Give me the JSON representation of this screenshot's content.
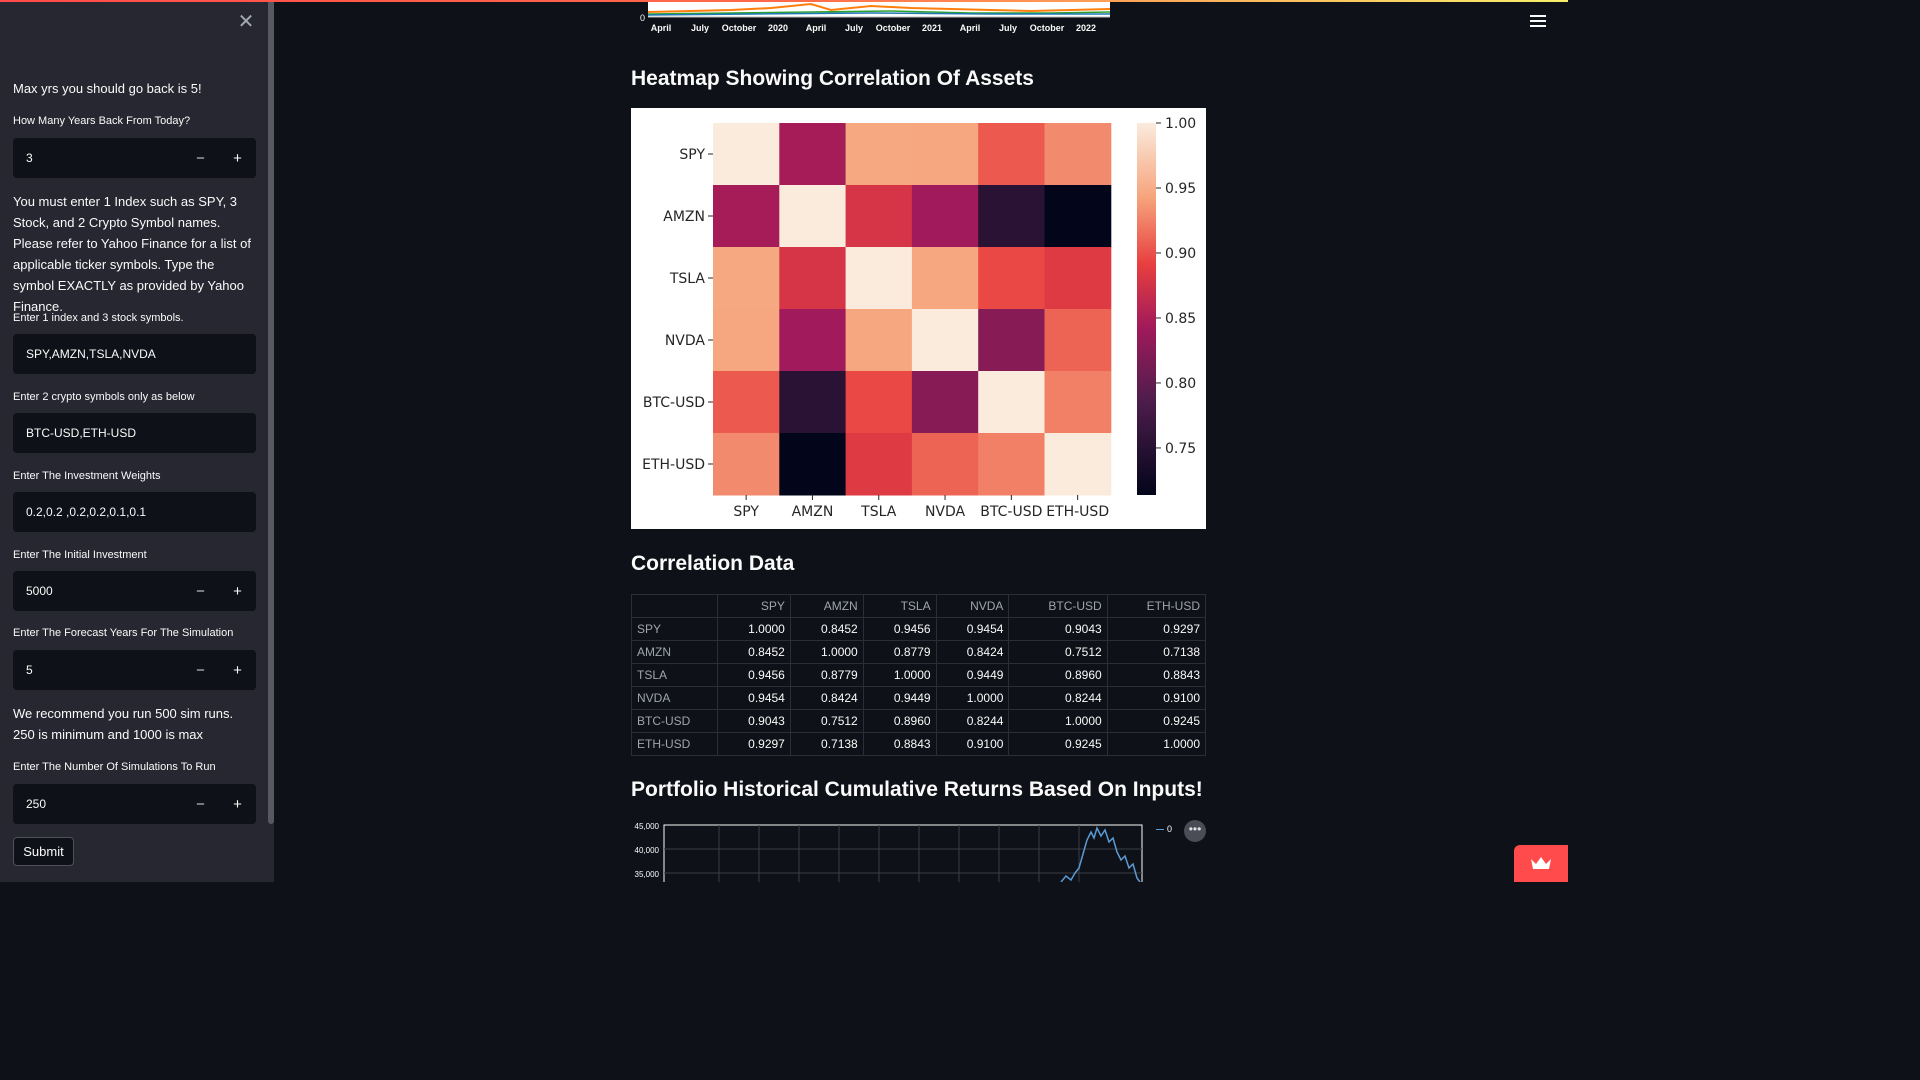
{
  "sidebar": {
    "intro_text": "Max yrs you should go back is 5!",
    "years_label": "How Many Years Back From Today?",
    "years_value": "3",
    "instructions": "You must enter 1 Index such as SPY, 3 Stock, and 2 Crypto Symbol names. Please refer to Yahoo Finance for a list of applicable ticker symbols. Type the symbol EXACTLY as provided by Yahoo Finance.",
    "stocks_label": "Enter 1 index and 3 stock symbols.",
    "stocks_value": "SPY,AMZN,TSLA,NVDA",
    "crypto_label": "Enter 2 crypto symbols only as below",
    "crypto_value": "BTC-USD,ETH-USD",
    "weights_label": "Enter The Investment Weights",
    "weights_value": "0.2,0.2 ,0.2,0.2,0.1,0.1",
    "investment_label": "Enter The Initial Investment",
    "investment_value": "5000",
    "forecast_label": "Enter The Forecast Years For The Simulation",
    "forecast_value": "5",
    "sim_note": "We recommend you run 500 sim runs. 250 is minimum and 1000 is max",
    "sims_label": "Enter The Number Of Simulations To Run",
    "sims_value": "250",
    "submit_label": "Submit",
    "minus": "−",
    "plus": "+",
    "close": "✕"
  },
  "top_chart": {
    "y_zero": "0",
    "ticks": [
      "April",
      "July",
      "October",
      "2020",
      "April",
      "July",
      "October",
      "2021",
      "April",
      "July",
      "October",
      "2022"
    ]
  },
  "heatmap": {
    "title": "Heatmap Showing Correlation Of Assets",
    "colorbar_ticks": [
      "1.00",
      "0.95",
      "0.90",
      "0.85",
      "0.80",
      "0.75"
    ],
    "vmin": 0.7138,
    "vmax": 1.0
  },
  "table": {
    "title": "Correlation Data",
    "columns": [
      "SPY",
      "AMZN",
      "TSLA",
      "NVDA",
      "BTC-USD",
      "ETH-USD"
    ],
    "rows": [
      {
        "name": "SPY",
        "values": [
          "1.0000",
          "0.8452",
          "0.9456",
          "0.9454",
          "0.9043",
          "0.9297"
        ]
      },
      {
        "name": "AMZN",
        "values": [
          "0.8452",
          "1.0000",
          "0.8779",
          "0.8424",
          "0.7512",
          "0.7138"
        ]
      },
      {
        "name": "TSLA",
        "values": [
          "0.9456",
          "0.8779",
          "1.0000",
          "0.9449",
          "0.8960",
          "0.8843"
        ]
      },
      {
        "name": "NVDA",
        "values": [
          "0.9454",
          "0.8424",
          "0.9449",
          "1.0000",
          "0.8244",
          "0.9100"
        ]
      },
      {
        "name": "BTC-USD",
        "values": [
          "0.9043",
          "0.7512",
          "0.8960",
          "0.8244",
          "1.0000",
          "0.9245"
        ]
      },
      {
        "name": "ETH-USD",
        "values": [
          "0.9297",
          "0.7138",
          "0.8843",
          "0.9100",
          "0.9245",
          "1.0000"
        ]
      }
    ]
  },
  "cumulative": {
    "title": "Portfolio Historical Cumulative Returns Based On Inputs!",
    "y_ticks": [
      "45,000",
      "40,000",
      "35,000"
    ],
    "legend": "0",
    "more": "•••"
  },
  "chart_data": {
    "type": "heatmap",
    "categories": [
      "SPY",
      "AMZN",
      "TSLA",
      "NVDA",
      "BTC-USD",
      "ETH-USD"
    ],
    "values": [
      [
        1.0,
        0.8452,
        0.9456,
        0.9454,
        0.9043,
        0.9297
      ],
      [
        0.8452,
        1.0,
        0.8779,
        0.8424,
        0.7512,
        0.7138
      ],
      [
        0.9456,
        0.8779,
        1.0,
        0.9449,
        0.896,
        0.8843
      ],
      [
        0.9454,
        0.8424,
        0.9449,
        1.0,
        0.8244,
        0.91
      ],
      [
        0.9043,
        0.7512,
        0.896,
        0.8244,
        1.0,
        0.9245
      ],
      [
        0.9297,
        0.7138,
        0.8843,
        0.91,
        0.9245,
        1.0
      ]
    ],
    "colorbar_range": [
      0.7138,
      1.0
    ]
  }
}
